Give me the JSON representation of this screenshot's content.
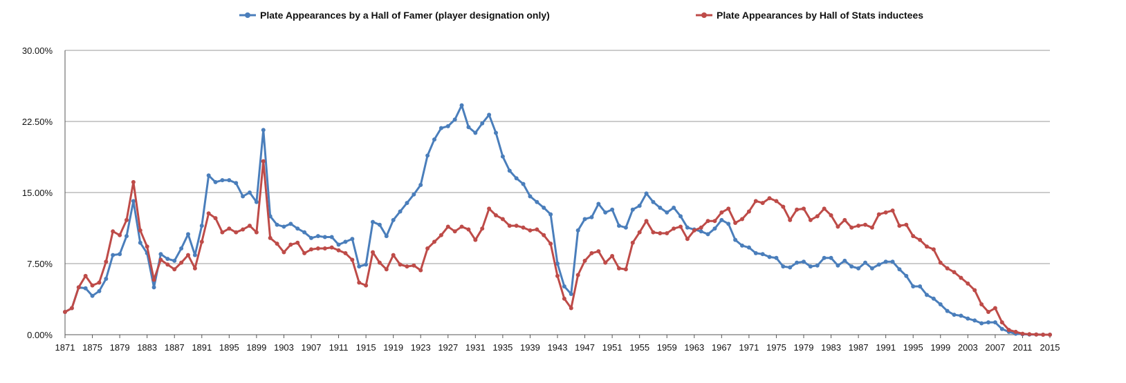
{
  "chart_data": {
    "type": "line",
    "title": "",
    "xlabel": "",
    "ylabel": "",
    "legend_position": "top",
    "grid": true,
    "ylim": [
      0,
      30
    ],
    "y_ticks": [
      "0.00%",
      "7.50%",
      "15.00%",
      "22.50%",
      "30.00%"
    ],
    "y_tick_values": [
      0,
      7.5,
      15,
      22.5,
      30
    ],
    "x_start": 1871,
    "x_end": 2015,
    "x_ticks": [
      "1871",
      "1875",
      "1879",
      "1883",
      "1887",
      "1891",
      "1895",
      "1899",
      "1903",
      "1907",
      "1911",
      "1915",
      "1919",
      "1923",
      "1927",
      "1931",
      "1935",
      "1939",
      "1943",
      "1947",
      "1951",
      "1955",
      "1959",
      "1963",
      "1967",
      "1971",
      "1975",
      "1979",
      "1983",
      "1987",
      "1991",
      "1995",
      "1999",
      "2003",
      "2007",
      "2011",
      "2015"
    ],
    "series": [
      {
        "name": "Plate Appearances by a Hall of Famer (player designation only)",
        "color": "#4a7ebb",
        "values": [
          2.4,
          2.8,
          5.0,
          4.9,
          4.1,
          4.6,
          5.9,
          8.4,
          8.5,
          10.4,
          14.1,
          9.7,
          8.6,
          5.0,
          8.5,
          8.0,
          7.8,
          9.1,
          10.6,
          8.4,
          11.5,
          16.8,
          16.1,
          16.3,
          16.3,
          16.0,
          14.6,
          15.0,
          14.0,
          21.6,
          12.5,
          11.6,
          11.4,
          11.7,
          11.2,
          10.8,
          10.2,
          10.4,
          10.3,
          10.3,
          9.5,
          9.8,
          10.1,
          7.2,
          7.4,
          11.9,
          11.6,
          10.4,
          12.1,
          13.0,
          13.9,
          14.8,
          15.8,
          18.9,
          20.6,
          21.8,
          22.0,
          22.7,
          24.2,
          21.9,
          21.3,
          22.3,
          23.2,
          21.3,
          18.8,
          17.3,
          16.5,
          15.9,
          14.6,
          14.0,
          13.4,
          12.7,
          7.5,
          5.1,
          4.3,
          11.0,
          12.2,
          12.4,
          13.8,
          12.9,
          13.2,
          11.5,
          11.3,
          13.2,
          13.6,
          14.9,
          14.0,
          13.4,
          12.9,
          13.4,
          12.5,
          11.3,
          11.1,
          10.9,
          10.6,
          11.2,
          12.1,
          11.7,
          10.0,
          9.4,
          9.2,
          8.6,
          8.5,
          8.2,
          8.1,
          7.2,
          7.1,
          7.6,
          7.7,
          7.2,
          7.3,
          8.1,
          8.1,
          7.3,
          7.8,
          7.2,
          7.0,
          7.6,
          7.0,
          7.4,
          7.7,
          7.7,
          6.9,
          6.2,
          5.1,
          5.1,
          4.2,
          3.8,
          3.2,
          2.5,
          2.1,
          2.0,
          1.7,
          1.5,
          1.2,
          1.3,
          1.3,
          0.6,
          0.3,
          0.1,
          0.05,
          0.02,
          0.02,
          0.0,
          0.0
        ]
      },
      {
        "name": "Plate Appearances by Hall of Stats inductees",
        "color": "#be4b48",
        "values": [
          2.4,
          2.8,
          5.0,
          6.2,
          5.2,
          5.5,
          7.7,
          10.9,
          10.5,
          12.1,
          16.1,
          11.0,
          9.3,
          5.8,
          7.9,
          7.4,
          6.9,
          7.6,
          8.4,
          7.0,
          9.8,
          12.8,
          12.3,
          10.8,
          11.2,
          10.8,
          11.1,
          11.5,
          10.8,
          18.3,
          10.2,
          9.6,
          8.7,
          9.5,
          9.7,
          8.6,
          9.0,
          9.1,
          9.1,
          9.2,
          8.9,
          8.6,
          7.9,
          5.5,
          5.2,
          8.7,
          7.6,
          6.9,
          8.4,
          7.4,
          7.2,
          7.3,
          6.8,
          9.1,
          9.8,
          10.5,
          11.4,
          10.9,
          11.4,
          11.1,
          10.0,
          11.2,
          13.3,
          12.6,
          12.2,
          11.5,
          11.5,
          11.3,
          11.0,
          11.1,
          10.5,
          9.6,
          6.2,
          3.8,
          2.8,
          6.3,
          7.8,
          8.6,
          8.8,
          7.6,
          8.3,
          7.0,
          6.9,
          9.7,
          10.8,
          12.0,
          10.8,
          10.7,
          10.7,
          11.2,
          11.4,
          10.1,
          11.0,
          11.3,
          12.0,
          12.0,
          12.9,
          13.3,
          11.8,
          12.2,
          13.0,
          14.1,
          13.9,
          14.4,
          14.1,
          13.5,
          12.1,
          13.2,
          13.3,
          12.1,
          12.5,
          13.3,
          12.6,
          11.4,
          12.1,
          11.3,
          11.5,
          11.6,
          11.3,
          12.7,
          12.9,
          13.1,
          11.5,
          11.6,
          10.4,
          10.0,
          9.3,
          9.0,
          7.6,
          7.0,
          6.6,
          6.0,
          5.4,
          4.7,
          3.2,
          2.4,
          2.8,
          1.3,
          0.5,
          0.3,
          0.1,
          0.05,
          0.02,
          0.0,
          0.0
        ]
      }
    ]
  }
}
